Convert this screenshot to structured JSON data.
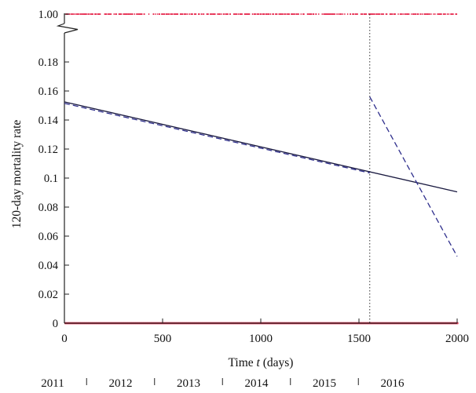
{
  "chart_data": {
    "type": "line",
    "title": "",
    "xlabel": "Time t (days)",
    "xlabel_prefix": "Time ",
    "xlabel_var": "t",
    "xlabel_suffix": " (days)",
    "ylabel": "120-day mortality rate",
    "xlim": [
      0,
      2000
    ],
    "ylim": [
      0,
      0.2
    ],
    "y_axis_break": true,
    "y_top_tick": "1.00",
    "x_ticks": [
      "0",
      "500",
      "1000",
      "1500",
      "2000"
    ],
    "x_tick_values": [
      0,
      500,
      1000,
      1500,
      2000
    ],
    "y_ticks": [
      "0",
      "0.02",
      "0.04",
      "0.06",
      "0.08",
      "0.1",
      "0.12",
      "0.14",
      "0.16",
      "0.18"
    ],
    "y_tick_values": [
      0,
      0.02,
      0.04,
      0.06,
      0.08,
      0.1,
      0.12,
      0.14,
      0.16,
      0.18
    ],
    "year_labels": [
      "2011",
      "2012",
      "2013",
      "2014",
      "2015",
      "2016"
    ],
    "change_point_x": 1555,
    "grid": false,
    "series": [
      {
        "style": "solid",
        "color": "#1a1a40",
        "points": [
          [
            0,
            0.1525
          ],
          [
            2000,
            0.0905
          ]
        ]
      },
      {
        "style": "dashed",
        "color": "#2e2e8c",
        "segments": [
          [
            [
              0,
              0.1515
            ],
            [
              1555,
              0.1035
            ]
          ],
          [
            [
              1555,
              0.156
            ],
            [
              2000,
              0.046
            ]
          ]
        ]
      }
    ],
    "events": {
      "color": "#e8385a",
      "outcome_1_y": 1.0,
      "outcome_0_y": 0
    }
  }
}
